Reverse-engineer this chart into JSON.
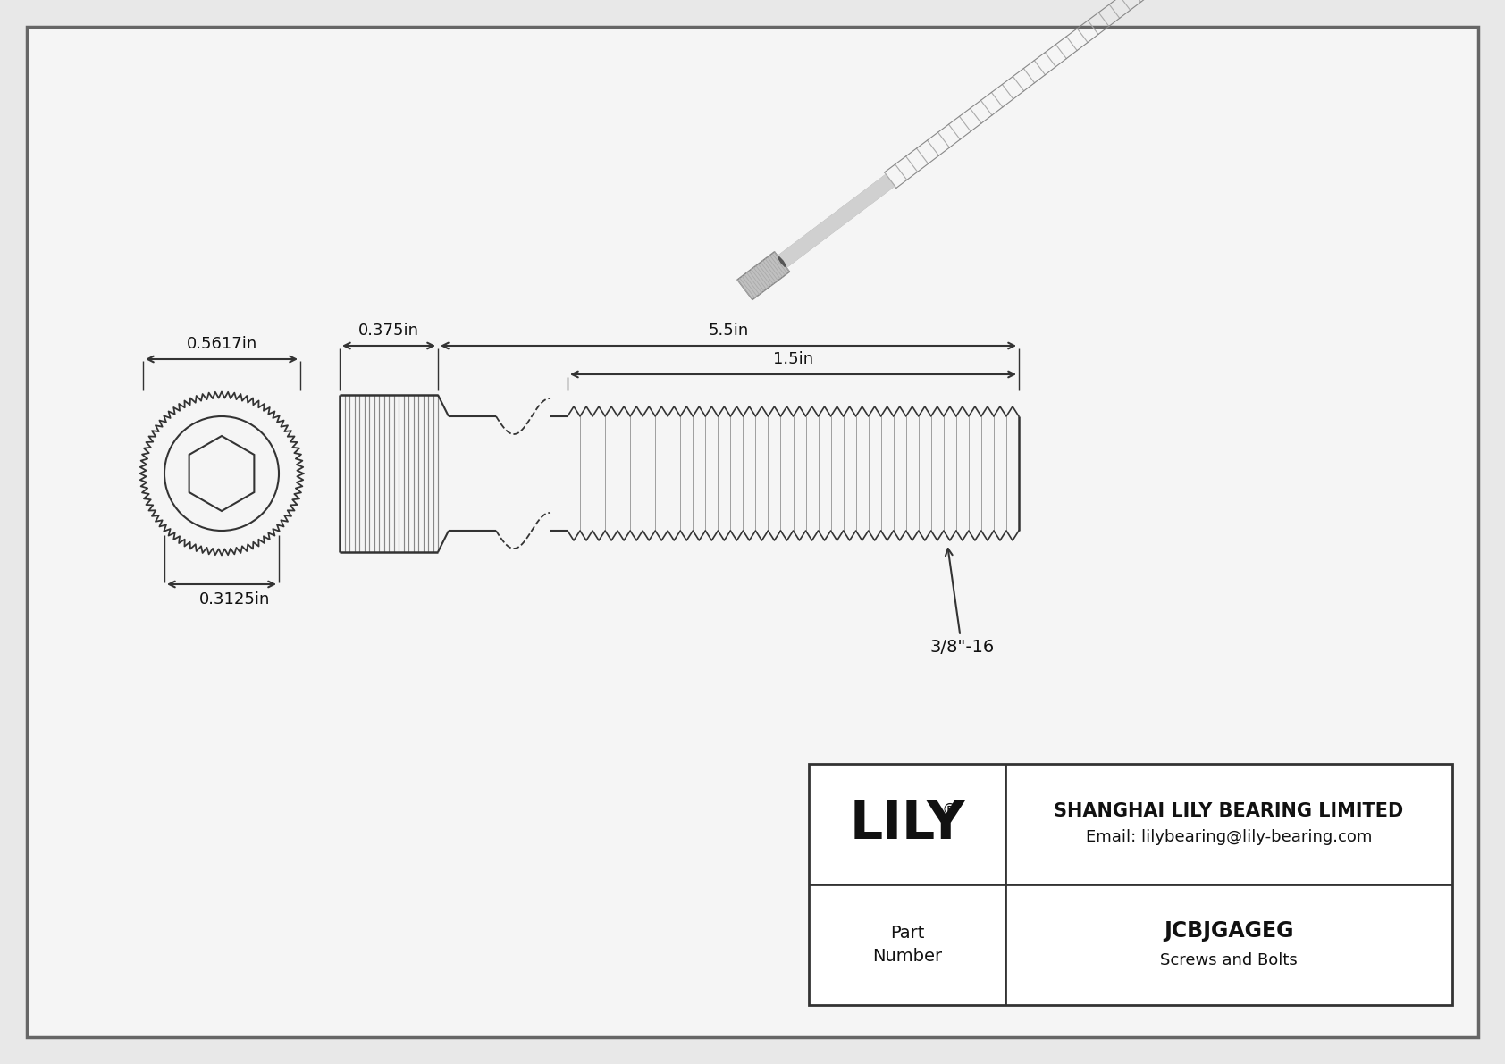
{
  "bg_color": "#e8e8e8",
  "paper_color": "#f5f5f5",
  "border_color": "#444444",
  "line_color": "#333333",
  "dim_color": "#333333",
  "text_color": "#111111",
  "title_company": "SHANGHAI LILY BEARING LIMITED",
  "title_email": "Email: lilybearing@lily-bearing.com",
  "part_number": "JCBJGAGEG",
  "part_category": "Screws and Bolts",
  "logo_text": "LILY",
  "dim_head_diameter": "0.5617in",
  "dim_head_height": "0.375in",
  "dim_total_length": "5.5in",
  "dim_thread_length": "1.5in",
  "dim_shank_diameter": "0.3125in",
  "dim_thread_spec": "3/8\"-16"
}
